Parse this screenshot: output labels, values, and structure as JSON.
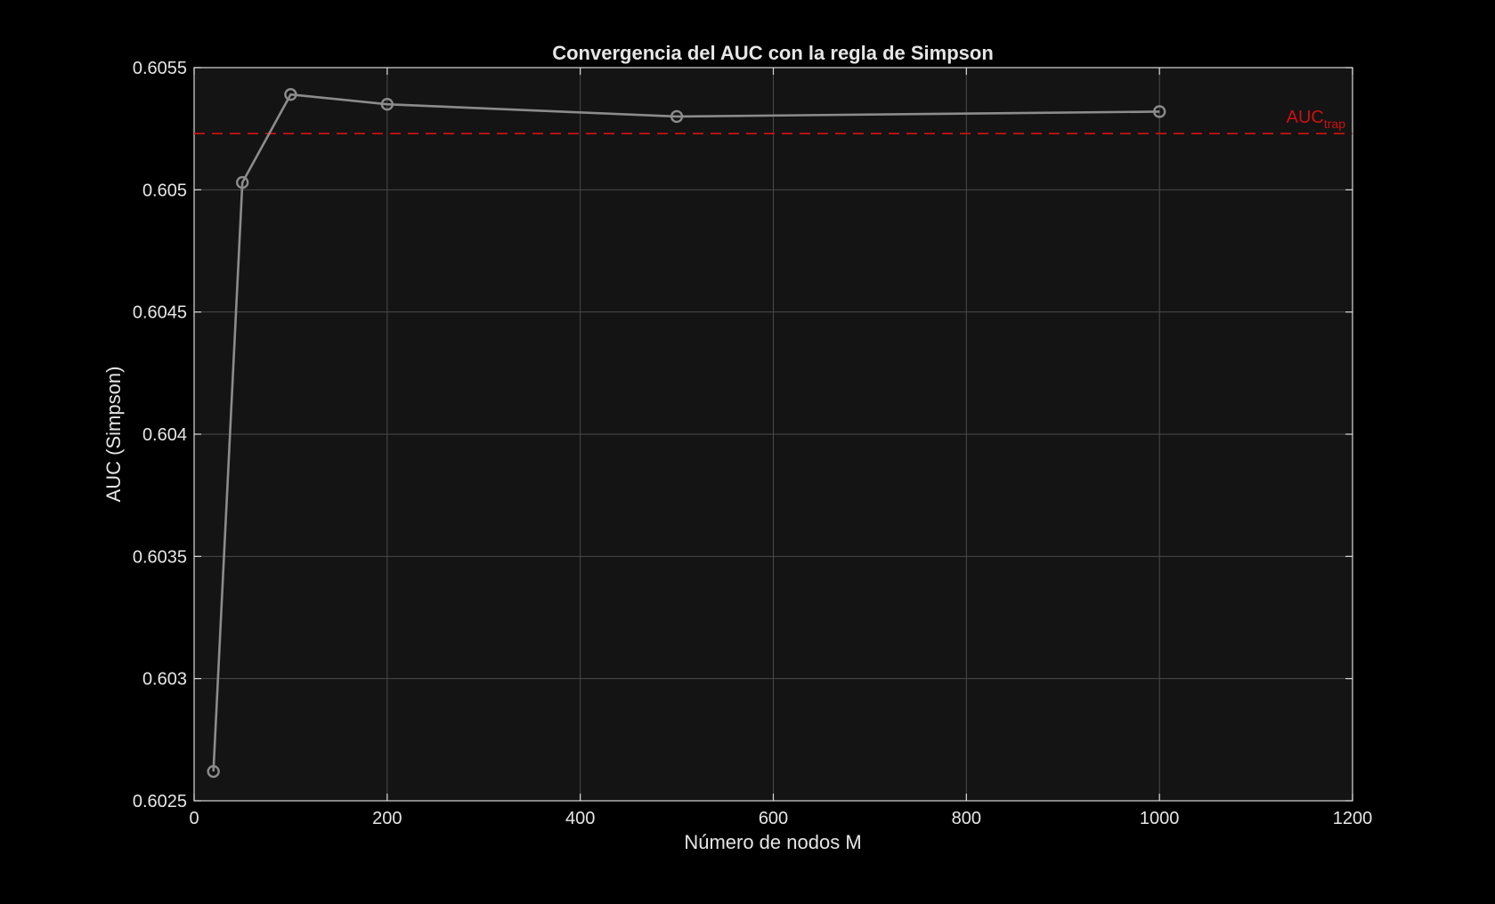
{
  "chart_data": {
    "type": "line",
    "title": "Convergencia del AUC con la regla de Simpson",
    "xlabel": "Número de nodos M",
    "ylabel": "AUC (Simpson)",
    "xlim": [
      0,
      1200
    ],
    "ylim": [
      0.6025,
      0.6055
    ],
    "xticks": [
      0,
      200,
      400,
      600,
      800,
      1000,
      1200
    ],
    "yticks": [
      0.6025,
      0.603,
      0.6035,
      0.604,
      0.6045,
      0.605,
      0.6055
    ],
    "xtick_labels": [
      "0",
      "200",
      "400",
      "600",
      "800",
      "1000",
      "1200"
    ],
    "ytick_labels": [
      "0.6025",
      "0.603",
      "0.6035",
      "0.604",
      "0.6045",
      "0.605",
      "0.6055"
    ],
    "grid": true,
    "series": [
      {
        "x": [
          20,
          50,
          100,
          200,
          500,
          1000
        ],
        "y": [
          0.60262,
          0.60503,
          0.60539,
          0.60535,
          0.6053,
          0.60532
        ],
        "color": "#8c8c8c",
        "marker": "circle"
      }
    ],
    "reference_line": {
      "y": 0.60523,
      "label_main": "AUC",
      "label_sub": "trap",
      "color": "#cc1111",
      "style": "dashed"
    },
    "colors": {
      "background": "#000000",
      "plot_background": "#141414",
      "grid": "#4a4a4a",
      "axes": "#d9d9d9",
      "text": "#e6e6e6"
    }
  }
}
